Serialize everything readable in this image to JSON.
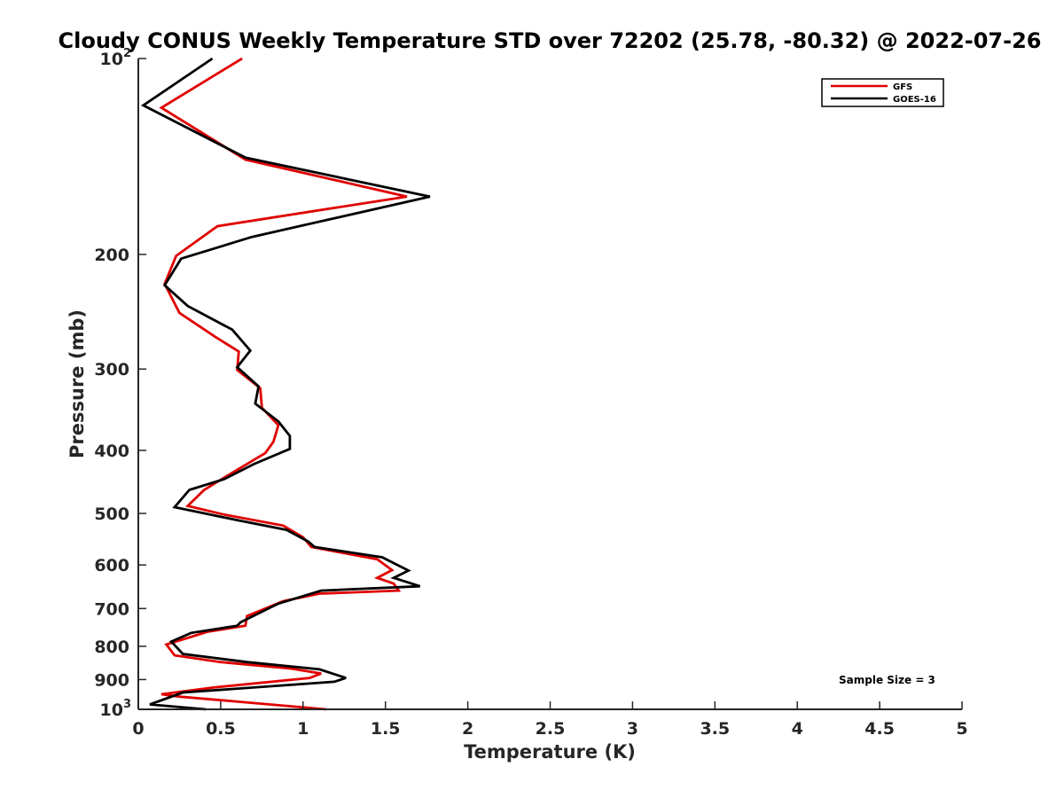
{
  "chart_data": {
    "type": "line",
    "title": "Cloudy CONUS Weekly Temperature STD over 72202 (25.78, -80.32) @ 2022-07-26",
    "xlabel": "Temperature (K)",
    "ylabel": "Pressure (mb)",
    "xlim": [
      0,
      5
    ],
    "ylim": [
      100,
      1000
    ],
    "y_scale": "log",
    "y_reversed": true,
    "x_ticks": [
      0,
      0.5,
      1,
      1.5,
      2,
      2.5,
      3,
      3.5,
      4,
      4.5,
      5
    ],
    "x_tick_labels": [
      "0",
      "0.5",
      "1",
      "1.5",
      "2",
      "2.5",
      "3",
      "3.5",
      "4",
      "4.5",
      "5"
    ],
    "y_ticks": [
      {
        "value": 100,
        "label": "10",
        "sup": "2"
      },
      {
        "value": 200,
        "label": "200",
        "sup": ""
      },
      {
        "value": 300,
        "label": "300",
        "sup": ""
      },
      {
        "value": 400,
        "label": "400",
        "sup": ""
      },
      {
        "value": 500,
        "label": "500",
        "sup": ""
      },
      {
        "value": 600,
        "label": "600",
        "sup": ""
      },
      {
        "value": 700,
        "label": "700",
        "sup": ""
      },
      {
        "value": 800,
        "label": "800",
        "sup": ""
      },
      {
        "value": 900,
        "label": "900",
        "sup": ""
      },
      {
        "value": 1000,
        "label": "10",
        "sup": "3"
      }
    ],
    "grid": false,
    "legend_position": "top-right",
    "annotation": "Sample Size = 3",
    "series": [
      {
        "name": "GFS",
        "color": "#e00000",
        "points": [
          [
            0.63,
            100
          ],
          [
            0.14,
            119
          ],
          [
            0.65,
            143
          ],
          [
            1.63,
            163
          ],
          [
            0.48,
            181
          ],
          [
            0.23,
            201
          ],
          [
            0.16,
            222
          ],
          [
            0.25,
            246
          ],
          [
            0.46,
            267
          ],
          [
            0.61,
            282
          ],
          [
            0.6,
            301
          ],
          [
            0.74,
            321
          ],
          [
            0.75,
            344
          ],
          [
            0.85,
            366
          ],
          [
            0.82,
            388
          ],
          [
            0.77,
            404
          ],
          [
            0.57,
            433
          ],
          [
            0.4,
            460
          ],
          [
            0.3,
            487
          ],
          [
            0.52,
            502
          ],
          [
            0.88,
            522
          ],
          [
            1.0,
            544
          ],
          [
            1.05,
            563
          ],
          [
            1.45,
            588
          ],
          [
            1.54,
            611
          ],
          [
            1.45,
            628
          ],
          [
            1.55,
            641
          ],
          [
            1.58,
            657
          ],
          [
            1.1,
            664
          ],
          [
            0.88,
            682
          ],
          [
            0.66,
            719
          ],
          [
            0.65,
            744
          ],
          [
            0.42,
            760
          ],
          [
            0.17,
            795
          ],
          [
            0.22,
            826
          ],
          [
            0.5,
            846
          ],
          [
            0.93,
            866
          ],
          [
            1.11,
            881
          ],
          [
            1.04,
            895
          ],
          [
            0.45,
            926
          ],
          [
            0.14,
            948
          ],
          [
            0.25,
            956
          ],
          [
            0.56,
            971
          ],
          [
            1.14,
            1000
          ]
        ]
      },
      {
        "name": "GOES-16",
        "color": "#000000",
        "points": [
          [
            0.45,
            100
          ],
          [
            0.03,
            118
          ],
          [
            0.65,
            142
          ],
          [
            1.77,
            163
          ],
          [
            0.69,
            188
          ],
          [
            0.26,
            203
          ],
          [
            0.16,
            223
          ],
          [
            0.3,
            240
          ],
          [
            0.57,
            261
          ],
          [
            0.68,
            281
          ],
          [
            0.6,
            298
          ],
          [
            0.73,
            319
          ],
          [
            0.71,
            339
          ],
          [
            0.85,
            361
          ],
          [
            0.92,
            380
          ],
          [
            0.92,
            398
          ],
          [
            0.7,
            420
          ],
          [
            0.52,
            443
          ],
          [
            0.31,
            460
          ],
          [
            0.22,
            489
          ],
          [
            0.6,
            512
          ],
          [
            0.9,
            530
          ],
          [
            1.03,
            552
          ],
          [
            1.07,
            563
          ],
          [
            1.48,
            584
          ],
          [
            1.64,
            612
          ],
          [
            1.55,
            628
          ],
          [
            1.71,
            647
          ],
          [
            1.11,
            657
          ],
          [
            0.85,
            688
          ],
          [
            0.62,
            735
          ],
          [
            0.6,
            744
          ],
          [
            0.32,
            763
          ],
          [
            0.2,
            787
          ],
          [
            0.27,
            822
          ],
          [
            0.66,
            846
          ],
          [
            1.1,
            868
          ],
          [
            1.26,
            895
          ],
          [
            1.19,
            907
          ],
          [
            0.27,
            942
          ],
          [
            0.07,
            983
          ],
          [
            0.41,
            1000
          ]
        ]
      }
    ]
  }
}
